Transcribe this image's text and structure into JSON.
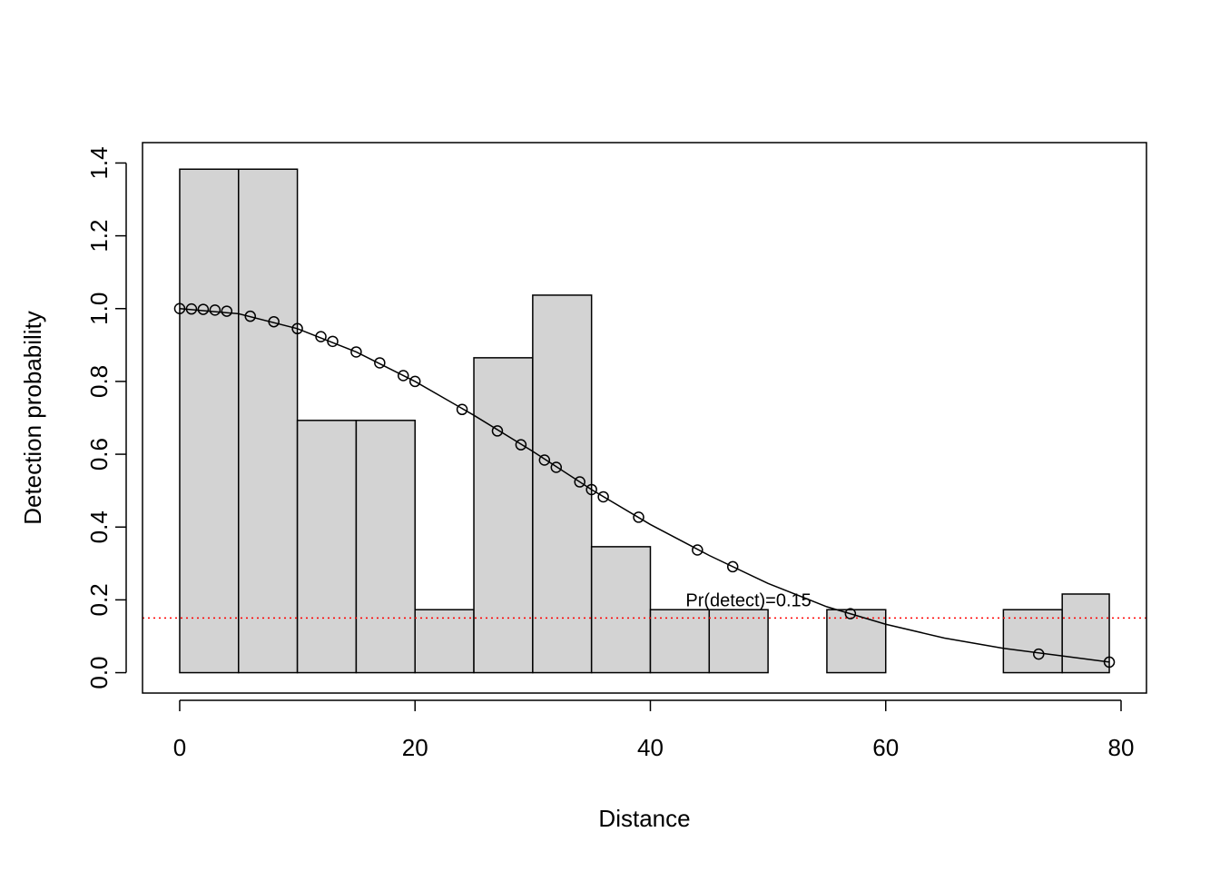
{
  "chart_data": {
    "type": "histogram",
    "title": "",
    "xlabel": "Distance",
    "ylabel": "Detection probability",
    "xlim": [
      -3.16,
      82.16
    ],
    "ylim": [
      -0.056,
      1.456
    ],
    "x_ticks": [
      "0",
      "20",
      "40",
      "60",
      "80"
    ],
    "y_ticks": [
      "0.0",
      "0.2",
      "0.4",
      "0.6",
      "0.8",
      "1.0",
      "1.2",
      "1.4"
    ],
    "bins": [
      {
        "start": 0,
        "end": 5,
        "value": 1.383
      },
      {
        "start": 5,
        "end": 10,
        "value": 1.383
      },
      {
        "start": 10,
        "end": 15,
        "value": 0.693
      },
      {
        "start": 15,
        "end": 20,
        "value": 0.693
      },
      {
        "start": 20,
        "end": 25,
        "value": 0.173
      },
      {
        "start": 25,
        "end": 30,
        "value": 0.865
      },
      {
        "start": 30,
        "end": 35,
        "value": 1.037
      },
      {
        "start": 35,
        "end": 40,
        "value": 0.346
      },
      {
        "start": 40,
        "end": 45,
        "value": 0.173
      },
      {
        "start": 45,
        "end": 50,
        "value": 0.173
      },
      {
        "start": 50,
        "end": 55,
        "value": 0
      },
      {
        "start": 55,
        "end": 60,
        "value": 0.173
      },
      {
        "start": 60,
        "end": 65,
        "value": 0
      },
      {
        "start": 65,
        "end": 70,
        "value": 0
      },
      {
        "start": 70,
        "end": 75,
        "value": 0.173
      },
      {
        "start": 75,
        "end": 79,
        "value": 0.216
      }
    ],
    "curve": {
      "x": [
        0,
        5,
        10,
        15,
        20,
        25,
        30,
        35,
        40,
        45,
        50,
        55,
        60,
        65,
        70,
        75,
        79
      ],
      "y": [
        1.0,
        0.986,
        0.945,
        0.881,
        0.8,
        0.707,
        0.608,
        0.503,
        0.407,
        0.322,
        0.245,
        0.181,
        0.133,
        0.095,
        0.067,
        0.046,
        0.029
      ]
    },
    "points": {
      "x": [
        0,
        1,
        2,
        3,
        4,
        6,
        8,
        10,
        12,
        13,
        15,
        17,
        19,
        20,
        24,
        27,
        29,
        31,
        32,
        34,
        35,
        36,
        39,
        44,
        47,
        57,
        73,
        79
      ],
      "y": [
        1.0,
        0.999,
        0.998,
        0.996,
        0.993,
        0.979,
        0.964,
        0.945,
        0.923,
        0.91,
        0.881,
        0.851,
        0.816,
        0.8,
        0.723,
        0.664,
        0.626,
        0.584,
        0.564,
        0.524,
        0.503,
        0.483,
        0.427,
        0.337,
        0.291,
        0.162,
        0.051,
        0.029
      ]
    },
    "reference_line": {
      "y": 0.15,
      "color": "#ff0000",
      "style": "dotted"
    },
    "annotation": {
      "text": "Pr(detect)=0.15",
      "x": 43,
      "y": 0.2
    },
    "colors": {
      "bar_fill": "#d3d3d3",
      "bar_stroke": "#000000",
      "curve": "#000000",
      "reference": "#ff0000"
    },
    "grid": false,
    "legend": "none"
  }
}
